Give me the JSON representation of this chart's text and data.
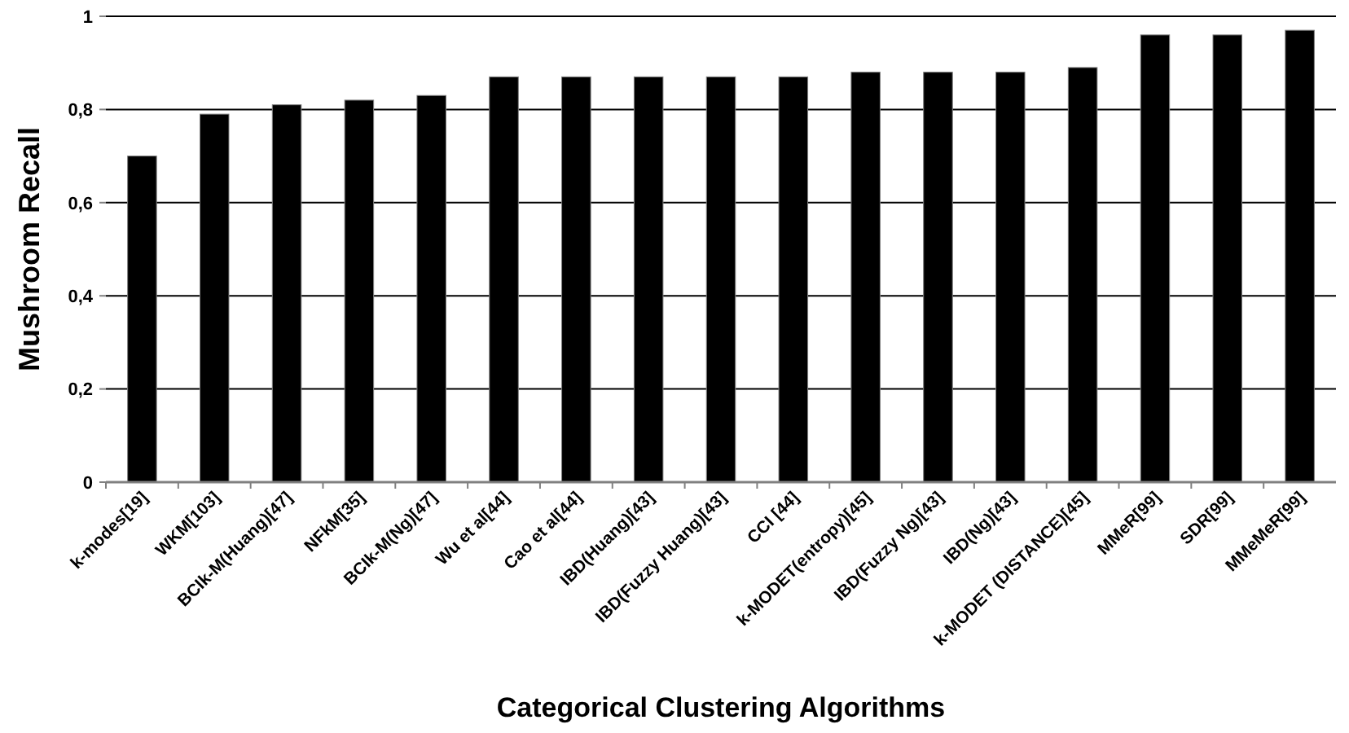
{
  "chart_data": {
    "type": "bar",
    "xlabel": "Categorical Clustering Algorithms",
    "ylabel": "Mushroom Recall",
    "categories": [
      "k-modes[19]",
      "WKM[103]",
      "BCIk-M(Huang)[47]",
      "NFkM[35]",
      "BCIk-M(Ng)[47]",
      "Wu et al[44]",
      "Cao et al[44]",
      "IBD(Huang)[43]",
      "IBD(Fuzzy Huang)[43]",
      "CCI [44]",
      "k-MODET(entropy)[45]",
      "IBD(Fuzzy Ng)[43]",
      "IBD(Ng)[43]",
      "k-MODET (DISTANCE)[45]",
      "MMeR[99]",
      "SDR[99]",
      "MMeMeR[99]"
    ],
    "values": [
      0.7,
      0.79,
      0.81,
      0.82,
      0.83,
      0.87,
      0.87,
      0.87,
      0.87,
      0.87,
      0.88,
      0.88,
      0.88,
      0.89,
      0.96,
      0.96,
      0.97
    ],
    "color": "#000000",
    "ylim": [
      0,
      1
    ],
    "yticks": [
      0,
      {
        "value": 0.2,
        "label": "0,2"
      },
      {
        "value": 0.4,
        "label": "0,4"
      },
      {
        "value": 0.6,
        "label": "0,6"
      },
      {
        "value": 0.8,
        "label": "0,8"
      },
      1
    ],
    "grid": "y"
  }
}
